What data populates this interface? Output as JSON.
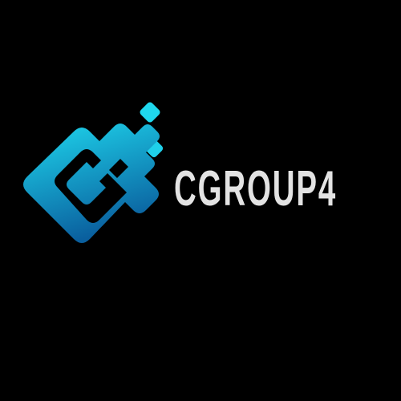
{
  "brand": {
    "name": "CGROUP4",
    "text_color": "#e3e3e3"
  },
  "logo": {
    "icon": "cgroup4-logo-icon",
    "gradient_top": "#1fd8ee",
    "gradient_bottom": "#0a5f9e"
  },
  "background_color": "#000000"
}
